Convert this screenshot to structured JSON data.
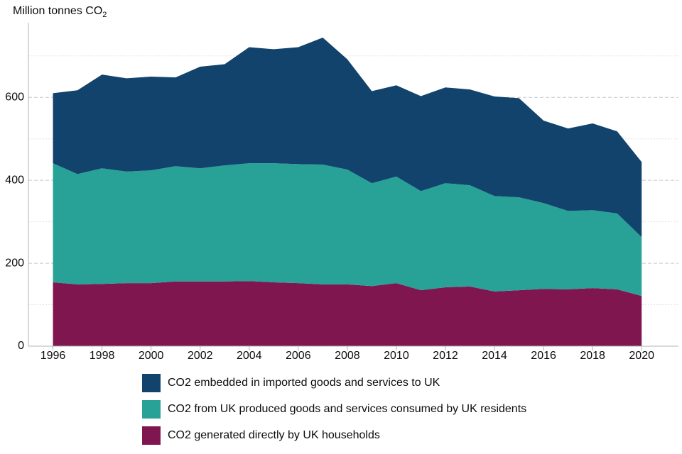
{
  "chart_data": {
    "type": "stacked-area",
    "y_label": "Million tonnes CO",
    "y_label_subscript": "2",
    "x": [
      1996,
      1997,
      1998,
      1999,
      2000,
      2001,
      2002,
      2003,
      2004,
      2005,
      2006,
      2007,
      2008,
      2009,
      2010,
      2011,
      2012,
      2013,
      2014,
      2015,
      2016,
      2017,
      2018,
      2019,
      2020
    ],
    "series": [
      {
        "name": "CO2 generated directly by UK households",
        "color": "#801650",
        "values": [
          154,
          149,
          150,
          152,
          152,
          156,
          156,
          156,
          157,
          154,
          152,
          149,
          149,
          145,
          152,
          135,
          142,
          144,
          132,
          135,
          138,
          137,
          140,
          137,
          121
        ]
      },
      {
        "name": "CO2 from UK produced goods and services consumed by UK residents",
        "color": "#28a197",
        "values": [
          287,
          266,
          279,
          269,
          272,
          278,
          273,
          280,
          284,
          287,
          287,
          289,
          277,
          248,
          257,
          239,
          251,
          244,
          230,
          224,
          207,
          189,
          188,
          183,
          142
        ]
      },
      {
        "name": "CO2 embedded in imported goods and services to UK",
        "color": "#12436d",
        "values": [
          169,
          202,
          226,
          225,
          226,
          214,
          245,
          244,
          280,
          275,
          282,
          306,
          266,
          222,
          220,
          229,
          231,
          231,
          240,
          239,
          199,
          199,
          209,
          198,
          181
        ]
      }
    ],
    "xlim": [
      1995,
      2021.5
    ],
    "xticks": [
      1996,
      1998,
      2000,
      2002,
      2004,
      2006,
      2008,
      2010,
      2012,
      2014,
      2016,
      2018,
      2020
    ],
    "ylim": [
      0,
      780
    ],
    "yticks": [
      0,
      200,
      400,
      600
    ],
    "minor_yticks": [
      100,
      300,
      500,
      700
    ],
    "grid": true
  }
}
